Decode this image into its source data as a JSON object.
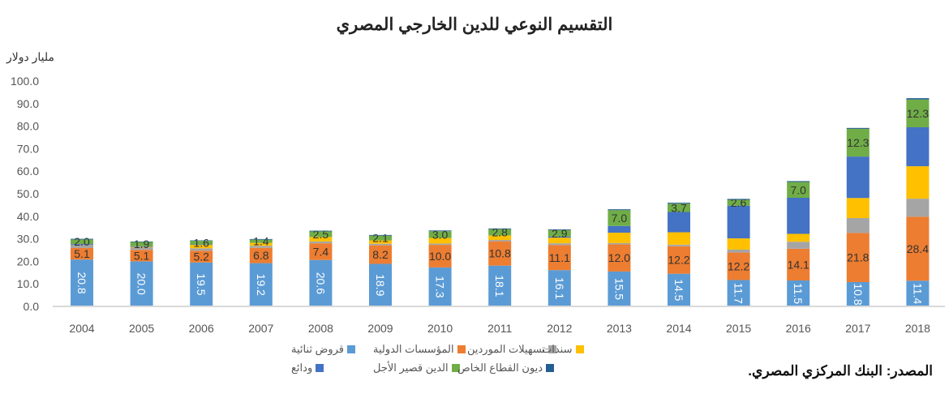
{
  "chart_data": {
    "type": "bar",
    "stacked": true,
    "title": "التقسيم النوعي للدين الخارجي المصري",
    "ylabel": "مليار دولار",
    "xlabel": "",
    "ylim": [
      0,
      100
    ],
    "yticks": [
      "0.0",
      "10.0",
      "20.0",
      "30.0",
      "40.0",
      "50.0",
      "60.0",
      "70.0",
      "80.0",
      "90.0",
      "100.0"
    ],
    "categories": [
      "2004",
      "2005",
      "2006",
      "2007",
      "2008",
      "2009",
      "2010",
      "2011",
      "2012",
      "2013",
      "2014",
      "2015",
      "2016",
      "2017",
      "2018"
    ],
    "series": [
      {
        "name": "قروض ثنائية",
        "color": "#5B9BD5",
        "labeled": true,
        "values": [
          20.8,
          20.0,
          19.5,
          19.2,
          20.6,
          18.9,
          17.3,
          18.1,
          16.1,
          15.5,
          14.5,
          11.7,
          11.5,
          10.8,
          11.4
        ]
      },
      {
        "name": "المؤسسات الدولية",
        "color": "#ED7D31",
        "labeled": true,
        "values": [
          5.1,
          5.1,
          5.2,
          6.8,
          7.4,
          8.2,
          10.0,
          10.8,
          11.1,
          12.0,
          12.2,
          12.2,
          14.1,
          21.8,
          28.4
        ]
      },
      {
        "name": "تسهيلات الموردين",
        "color": "#A5A5A5",
        "labeled": false,
        "values": [
          1.5,
          1.0,
          1.1,
          0.9,
          0.8,
          0.7,
          0.6,
          0.6,
          0.8,
          0.6,
          0.7,
          1.3,
          3.1,
          6.6,
          8.0
        ]
      },
      {
        "name": "سندات",
        "color": "#FFC000",
        "labeled": false,
        "values": [
          0.0,
          0.3,
          1.5,
          1.3,
          2.0,
          1.5,
          2.5,
          2.0,
          2.5,
          4.6,
          5.5,
          5.0,
          3.5,
          8.9,
          14.4
        ]
      },
      {
        "name": "ودائع",
        "color": "#4472C4",
        "labeled": false,
        "values": [
          0.3,
          0.3,
          0.2,
          0.0,
          0.0,
          0.0,
          0.0,
          0.0,
          0.5,
          3.0,
          9.0,
          14.5,
          16.0,
          18.4,
          17.3
        ]
      },
      {
        "name": "الدين قصير الأجل",
        "color": "#70AD47",
        "labeled": true,
        "values": [
          2.0,
          1.9,
          1.6,
          1.4,
          2.5,
          2.1,
          3.0,
          2.8,
          2.9,
          7.0,
          3.7,
          2.6,
          7.0,
          12.3,
          12.3
        ]
      },
      {
        "name": "ديون القطاع الخاص",
        "color": "#255E91",
        "labeled": false,
        "values": [
          0.3,
          0.2,
          0.2,
          0.3,
          0.3,
          0.3,
          0.3,
          0.3,
          0.3,
          0.4,
          0.4,
          0.4,
          0.4,
          0.4,
          0.6
        ]
      }
    ],
    "legend_position": "bottom",
    "grid": false
  },
  "source": "المصدر: البنك المركزي المصري."
}
